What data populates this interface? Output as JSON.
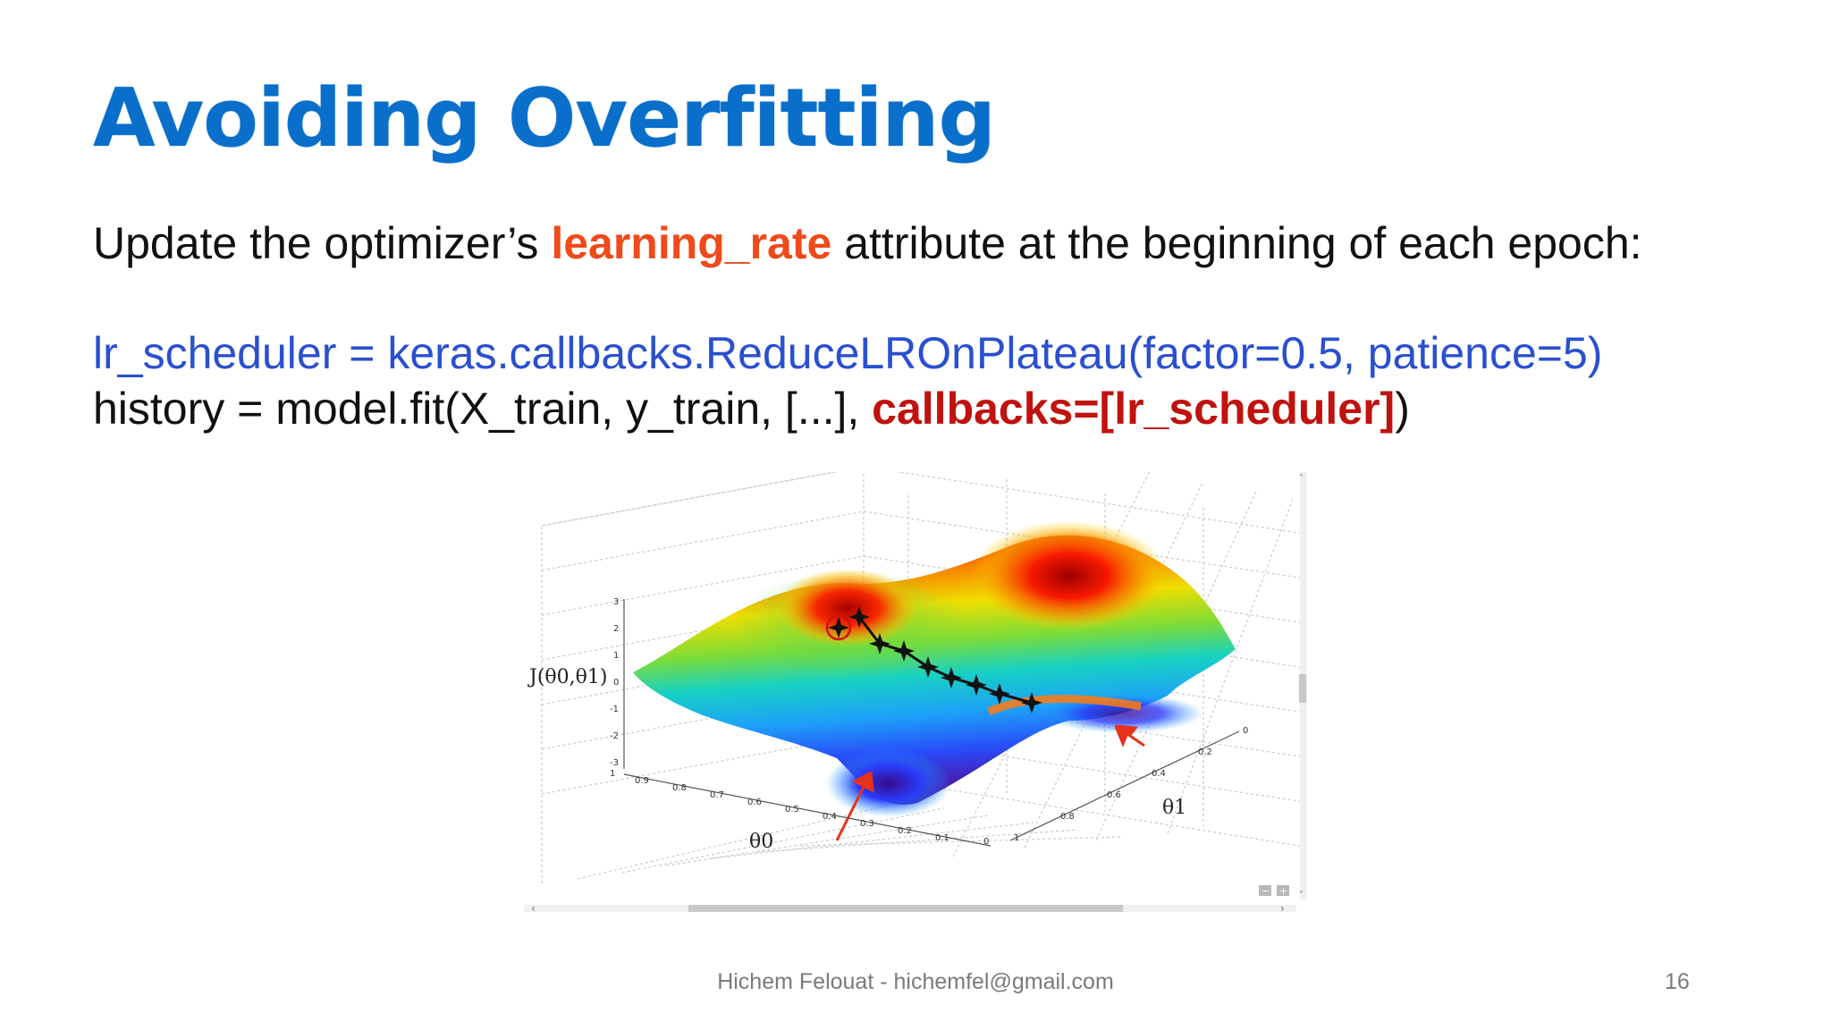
{
  "slide": {
    "title": "Avoiding Overfitting",
    "line1": {
      "prefix": "Update the optimizer’s ",
      "highlight": "learning_rate",
      "suffix": " attribute at the beginning of each epoch:"
    },
    "code_line1": "lr_scheduler = keras.callbacks.ReduceLROnPlateau(factor=0.5, patience=5)",
    "code_line2": {
      "prefix": "history = model.fit(X_train, y_train, [...], ",
      "highlight": "callbacks=[lr_scheduler]",
      "suffix": ")"
    },
    "footer_author": "Hichem Felouat - hichemfel@gmail.com",
    "page_number": "16"
  },
  "figure": {
    "z_axis_label": "J(θ0,θ1)",
    "z_ticks": [
      "3",
      "2",
      "1",
      "0",
      "-1",
      "-2",
      "-3"
    ],
    "theta0_label": "θ0",
    "theta0_ticks": [
      "1",
      "0.9",
      "0.8",
      "0.7",
      "0.6",
      "0.5",
      "0.4",
      "0.3",
      "0.2",
      "0.1",
      "0"
    ],
    "theta1_label": "θ1",
    "theta1_ticks": [
      "0",
      "0.2",
      "0.4",
      "0.6",
      "0.8",
      "1"
    ],
    "colors": {
      "path": "#111111",
      "arrow": "#e8321b",
      "scroll": "#c8c8c8"
    }
  }
}
